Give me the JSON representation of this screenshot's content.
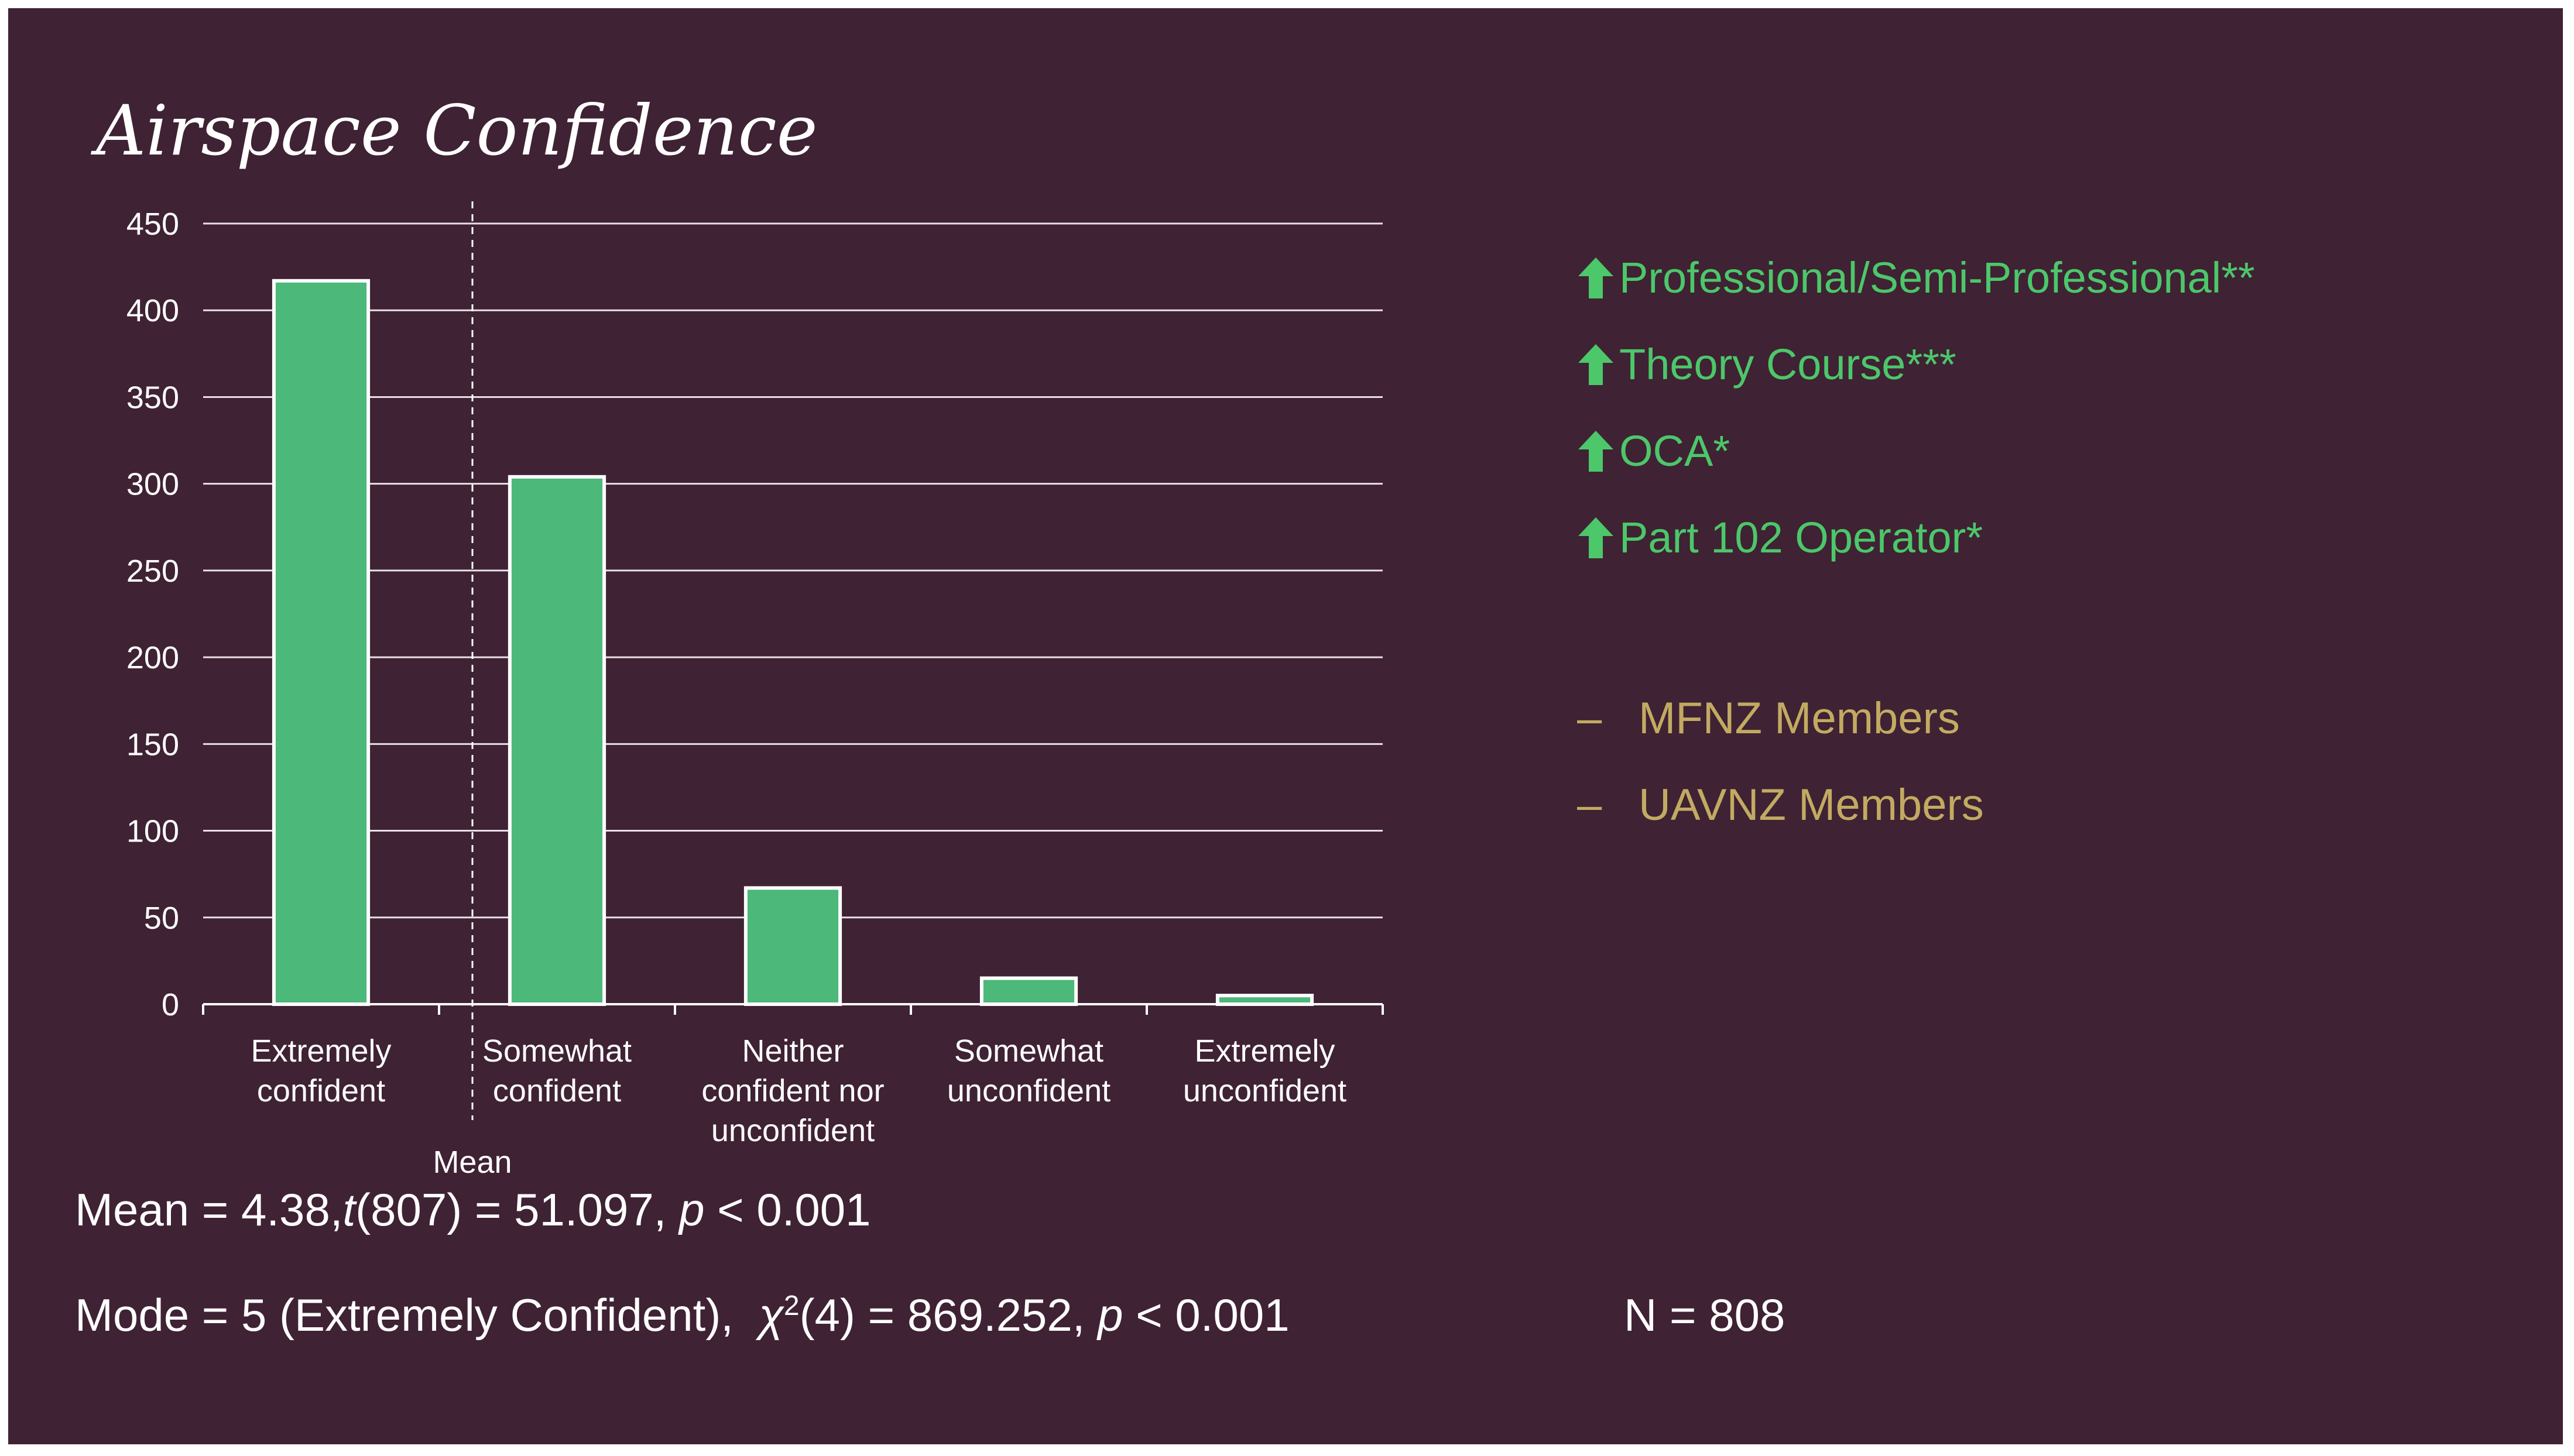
{
  "title": "Airspace Confidence",
  "chart_data": {
    "type": "bar",
    "categories": [
      [
        "Extremely",
        "confident"
      ],
      [
        "Somewhat",
        "confident"
      ],
      [
        "Neither",
        "confident nor",
        "unconfident"
      ],
      [
        "Somewhat",
        "unconfident"
      ],
      [
        "Extremely",
        "unconfident"
      ]
    ],
    "values": [
      417,
      304,
      67,
      15,
      5
    ],
    "ylim": [
      0,
      450
    ],
    "yticks": [
      0,
      50,
      100,
      150,
      200,
      250,
      300,
      350,
      400,
      450
    ],
    "grid": true,
    "bar_color": "#4cb87a",
    "bar_edge_color": "#ffffff",
    "annotations": [
      {
        "label": "Mean",
        "style": "dashed vertical line",
        "between": [
          "Extremely confident",
          "Somewhat confident"
        ]
      }
    ]
  },
  "significance_items": [
    {
      "icon": "up-arrow-icon",
      "label": "Professional/Semi-Professional**"
    },
    {
      "icon": "up-arrow-icon",
      "label": "Theory Course***"
    },
    {
      "icon": "up-arrow-icon",
      "label": "OCA*"
    },
    {
      "icon": "up-arrow-icon",
      "label": "Part 102 Operator*"
    }
  ],
  "group_items": [
    {
      "marker": "–",
      "label": "MFNZ Members"
    },
    {
      "marker": "–",
      "label": "UAVNZ Members"
    }
  ],
  "stats": {
    "mean_prefix": "Mean = 4.38,",
    "mean_t": "t",
    "mean_df": "(807) = 51.097,",
    "mean_p": "p",
    "mean_p_val": "< 0.001",
    "mode_prefix": "Mode = 5 (Extremely Confident),",
    "mode_chi": "χ",
    "mode_sup": "2",
    "mode_df": "(4) = 869.252,",
    "mode_p": "p",
    "mode_p_val": "< 0.001",
    "n": "N = 808"
  },
  "colors": {
    "background": "#3f2233",
    "accent_green": "#4cc76a",
    "accent_gold": "#c2aa62",
    "bar": "#4cb87a"
  }
}
